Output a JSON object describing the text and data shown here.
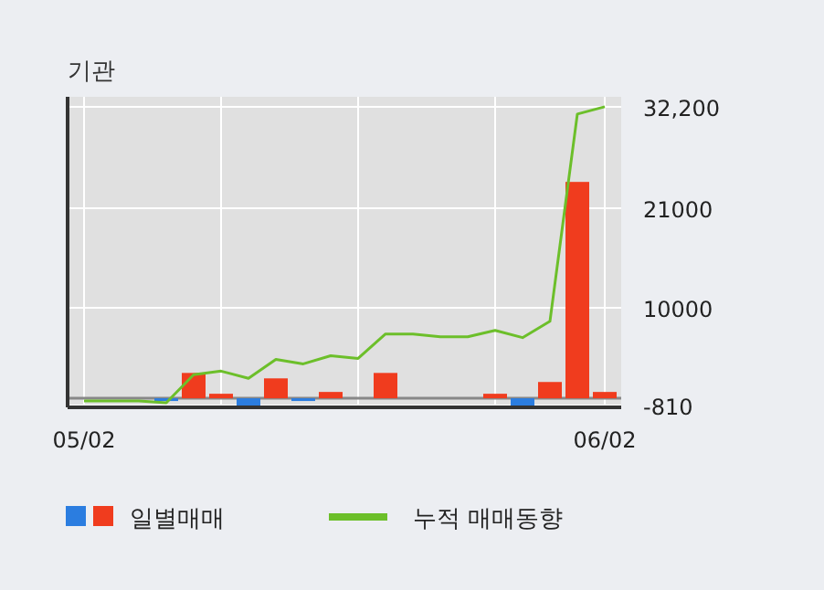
{
  "chart_data": {
    "type": "bar",
    "title": "기관",
    "categories": [
      "05/02",
      null,
      null,
      null,
      null,
      null,
      null,
      null,
      null,
      null,
      null,
      null,
      null,
      null,
      null,
      null,
      null,
      null,
      null,
      "06/02"
    ],
    "series": [
      {
        "name": "일별매매",
        "values": [
          0,
          0,
          0,
          -300,
          2800,
          500,
          -800,
          2200,
          -300,
          700,
          0,
          2800,
          0,
          0,
          0,
          500,
          -900,
          1800,
          23900,
          700
        ],
        "colors": [
          "#f03c1e",
          "#f03c1e",
          "#f03c1e",
          "#2b7de0",
          "#f03c1e",
          "#f03c1e",
          "#2b7de0",
          "#f03c1e",
          "#2b7de0",
          "#f03c1e",
          "#f03c1e",
          "#f03c1e",
          "#f03c1e",
          "#f03c1e",
          "#f03c1e",
          "#f03c1e",
          "#2b7de0",
          "#f03c1e",
          "#f03c1e",
          "#f03c1e"
        ]
      },
      {
        "name": "누적 매매동향",
        "type": "line",
        "color": "#6cbf2a",
        "values": [
          -300,
          -300,
          -300,
          -500,
          2600,
          3000,
          2200,
          4300,
          3800,
          4700,
          4400,
          7100,
          7100,
          6800,
          6800,
          7500,
          6700,
          8500,
          31400,
          32200
        ]
      }
    ],
    "ylim": [
      -1000,
      33300
    ],
    "yticks": [
      -810,
      10000,
      21000,
      {
        "value": 32200,
        "label": "32,200"
      }
    ],
    "grid": true,
    "legend": "bottom"
  }
}
